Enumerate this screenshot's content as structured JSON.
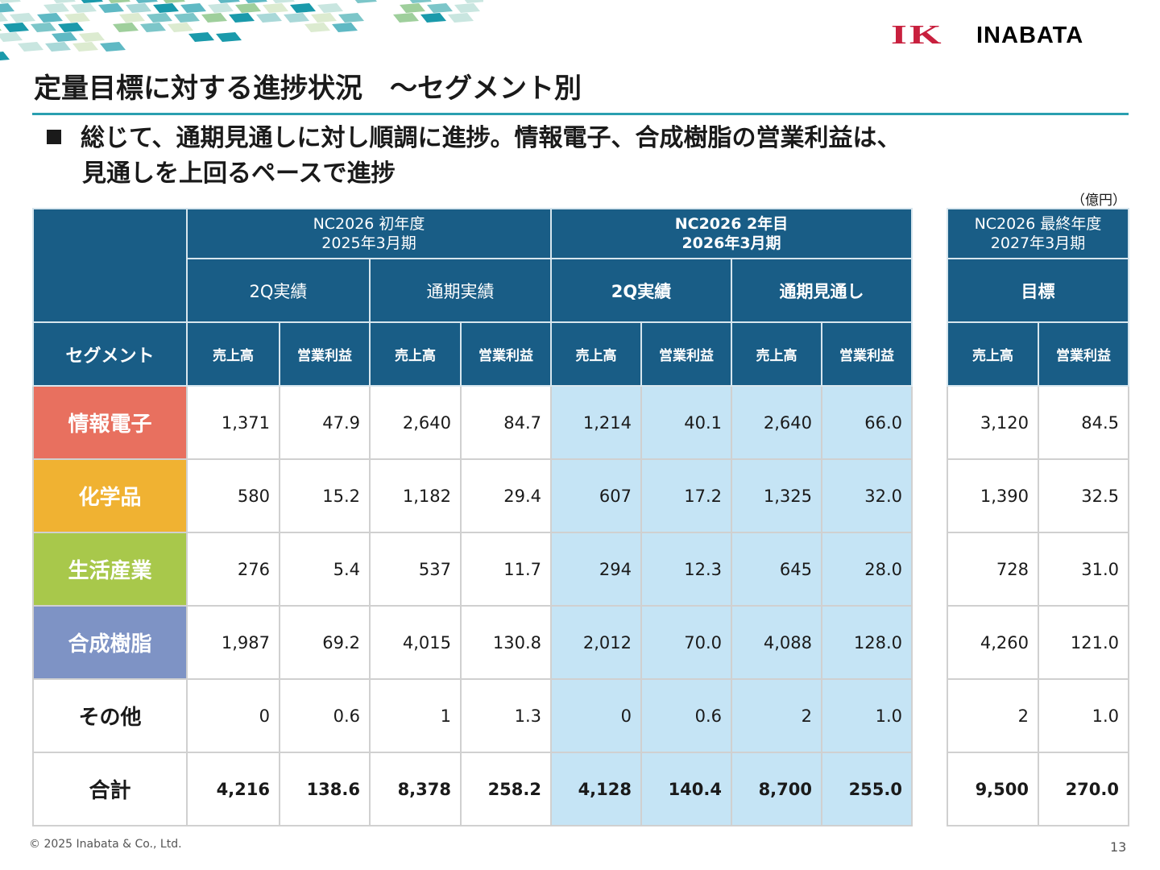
{
  "logo": {
    "mark": "IK",
    "name": "INABATA"
  },
  "title": "定量目標に対する進捗状況　～セグメント別",
  "lead": {
    "line1": "総じて、通期見通しに対し順調に進捗。情報電子、合成樹脂の営業利益は、",
    "line2": "見通しを上回るペースで進捗"
  },
  "unit": "（億円）",
  "table": {
    "periods": [
      {
        "line1": "NC2026 初年度",
        "line2": "2025年3月期"
      },
      {
        "line1": "NC2026 2年目",
        "line2": "2026年3月期"
      },
      {
        "line1": "NC2026 最終年度",
        "line2": "2027年3月期"
      }
    ],
    "groups": [
      "2Q実績",
      "通期実績",
      "2Q実績",
      "通期見通し",
      "目標"
    ],
    "segment_header": "セグメント",
    "sales": "売上高",
    "op": "営業利益",
    "rows": [
      {
        "name": "情報電子",
        "color": "#e8705f",
        "v": [
          "1,371",
          "47.9",
          "2,640",
          "84.7",
          "1,214",
          "40.1",
          "2,640",
          "66.0",
          "3,120",
          "84.5"
        ]
      },
      {
        "name": "化学品",
        "color": "#f0b232",
        "v": [
          "580",
          "15.2",
          "1,182",
          "29.4",
          "607",
          "17.2",
          "1,325",
          "32.0",
          "1,390",
          "32.5"
        ]
      },
      {
        "name": "生活産業",
        "color": "#a8c84b",
        "v": [
          "276",
          "5.4",
          "537",
          "11.7",
          "294",
          "12.3",
          "645",
          "28.0",
          "728",
          "31.0"
        ]
      },
      {
        "name": "合成樹脂",
        "color": "#7e93c5",
        "v": [
          "1,987",
          "69.2",
          "4,015",
          "130.8",
          "2,012",
          "70.0",
          "4,088",
          "128.0",
          "4,260",
          "121.0"
        ]
      },
      {
        "name": "その他",
        "color": "#ffffff",
        "v": [
          "0",
          "0.6",
          "1",
          "1.3",
          "0",
          "0.6",
          "2",
          "1.0",
          "2",
          "1.0"
        ]
      },
      {
        "name": "合計",
        "color": "#ffffff",
        "v": [
          "4,216",
          "138.6",
          "8,378",
          "258.2",
          "4,128",
          "140.4",
          "8,700",
          "255.0",
          "9,500",
          "270.0"
        ]
      }
    ]
  },
  "footer": "© 2025 Inabata & Co., Ltd.",
  "page_number": "13",
  "colors": {
    "header": "#195d86",
    "highlight": "#c5e4f5",
    "rule": "#2a9fb0"
  }
}
